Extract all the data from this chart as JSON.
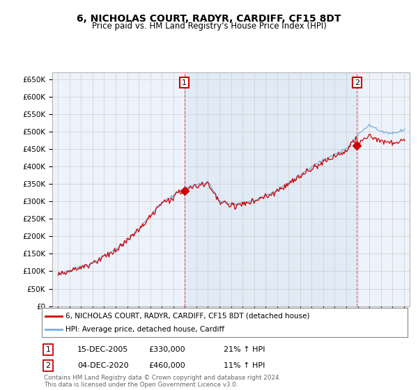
{
  "title": "6, NICHOLAS COURT, RADYR, CARDIFF, CF15 8DT",
  "subtitle": "Price paid vs. HM Land Registry's House Price Index (HPI)",
  "ylabel_ticks": [
    "£0",
    "£50K",
    "£100K",
    "£150K",
    "£200K",
    "£250K",
    "£300K",
    "£350K",
    "£400K",
    "£450K",
    "£500K",
    "£550K",
    "£600K",
    "£650K"
  ],
  "ytick_values": [
    0,
    50000,
    100000,
    150000,
    200000,
    250000,
    300000,
    350000,
    400000,
    450000,
    500000,
    550000,
    600000,
    650000
  ],
  "xlim_start": 1994.5,
  "xlim_end": 2025.5,
  "ylim_min": 0,
  "ylim_max": 670000,
  "sale1_date": 2005.96,
  "sale1_price": 330000,
  "sale2_date": 2020.92,
  "sale2_price": 460000,
  "legend_line1": "6, NICHOLAS COURT, RADYR, CARDIFF, CF15 8DT (detached house)",
  "legend_line2": "HPI: Average price, detached house, Cardiff",
  "annotation1_date": "15-DEC-2005",
  "annotation1_price": "£330,000",
  "annotation1_hpi": "21% ↑ HPI",
  "annotation2_date": "04-DEC-2020",
  "annotation2_price": "£460,000",
  "annotation2_hpi": "11% ↑ HPI",
  "footer": "Contains HM Land Registry data © Crown copyright and database right 2024.\nThis data is licensed under the Open Government Licence v3.0.",
  "line_color_red": "#cc0000",
  "line_color_blue": "#7aaddc",
  "shade_color": "#dce9f5",
  "grid_color": "#cccccc",
  "background_color": "#ffffff",
  "plot_bg_color": "#eef3fb"
}
